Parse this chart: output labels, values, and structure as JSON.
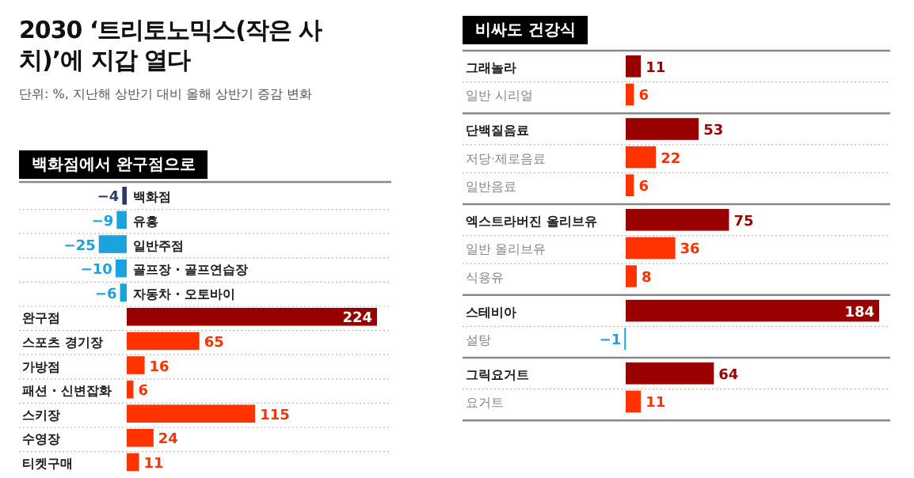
{
  "chart_data": [
    {
      "type": "other",
      "title": "2030 ‘트리토노믹스(작은 사치)’에 지갑 열다",
      "subtitle": "단위: %, 지난해 상반기 대비 올해 상반기 증감 변화"
    },
    {
      "type": "bar",
      "orientation": "horizontal",
      "title": "백화점에서 완구점으로",
      "data_labels": true,
      "categories": [
        "백화점",
        "유흥",
        "일반주점",
        "골프장 · 골프연습장",
        "자동차 · 오토바이",
        "완구점",
        "스포츠 경기장",
        "가방점",
        "패션 · 신변잡화",
        "스키장",
        "수영장",
        "티켓구매"
      ],
      "values": [
        -4,
        -9,
        -25,
        -10,
        -6,
        224,
        65,
        16,
        6,
        115,
        24,
        11
      ],
      "colors": [
        "#2b3a6b",
        "#1aa3dc",
        "#1aa3dc",
        "#1aa3dc",
        "#1aa3dc",
        "#990000",
        "#ff3300",
        "#ff3300",
        "#ff3300",
        "#ff3300",
        "#ff3300",
        "#ff3300"
      ]
    },
    {
      "type": "bar",
      "orientation": "horizontal",
      "title": "비싸도 건강식",
      "data_labels": true,
      "categories": [
        "그래놀라",
        "일반 시리얼",
        "단백질음료",
        "저당·제로음료",
        "일반음료",
        "엑스트라버진 올리브유",
        "일반 올리브유",
        "식용유",
        "스테비아",
        "설탕",
        "그릭요거트",
        "요거트"
      ],
      "values": [
        11,
        6,
        53,
        22,
        6,
        75,
        36,
        8,
        184,
        -1,
        64,
        11
      ],
      "colors": [
        "#990000",
        "#ff3300",
        "#990000",
        "#ff3300",
        "#ff3300",
        "#990000",
        "#ff3300",
        "#ff3300",
        "#990000",
        "#1aa3dc",
        "#990000",
        "#ff3300"
      ]
    }
  ]
}
